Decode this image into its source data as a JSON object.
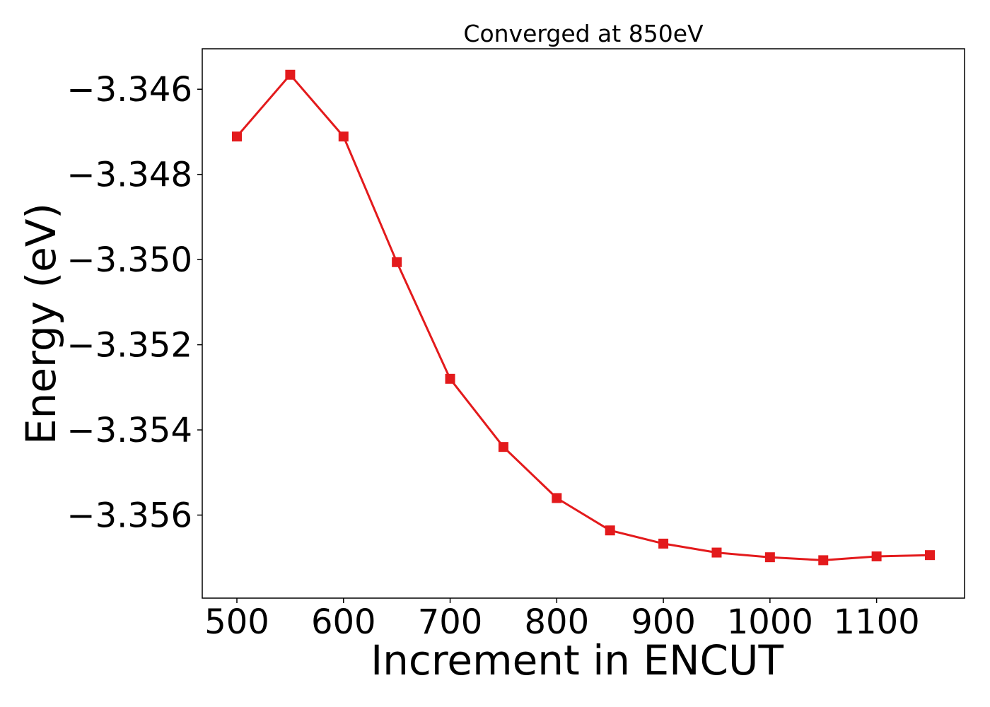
{
  "chart_data": {
    "type": "line",
    "title": "Converged at 850eV",
    "xlabel": "Increment in ENCUT",
    "ylabel": "Energy (eV)",
    "xlim": [
      467.5,
      1182.5
    ],
    "ylim": [
      -3.35795,
      -3.34505
    ],
    "xticks": [
      500,
      600,
      700,
      800,
      900,
      1000,
      1100
    ],
    "xtick_labels": [
      "500",
      "600",
      "700",
      "800",
      "900",
      "1000",
      "1100"
    ],
    "yticks": [
      -3.346,
      -3.348,
      -3.35,
      -3.352,
      -3.354,
      -3.356
    ],
    "ytick_labels": [
      "−3.346",
      "−3.348",
      "−3.350",
      "−3.352",
      "−3.354",
      "−3.356"
    ],
    "grid": false,
    "series": [
      {
        "color": "#e31a1c",
        "marker": "square",
        "x": [
          500,
          550,
          600,
          650,
          700,
          750,
          800,
          850,
          900,
          950,
          1000,
          1050,
          1100,
          1150
        ],
        "y": [
          -3.34711,
          -3.34566,
          -3.34711,
          -3.35006,
          -3.3528,
          -3.3544,
          -3.3556,
          -3.35636,
          -3.35667,
          -3.35688,
          -3.35699,
          -3.35706,
          -3.35697,
          -3.35694
        ]
      }
    ]
  }
}
